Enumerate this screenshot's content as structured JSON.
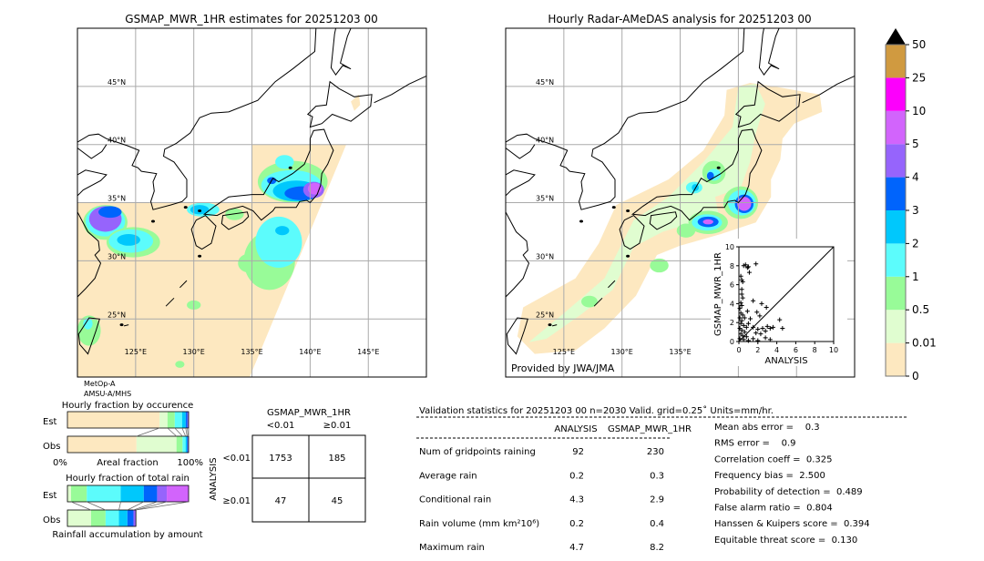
{
  "left_map": {
    "title": "GSMAP_MWR_1HR estimates for 20251203 00",
    "sensor_line1": "MetOp-A",
    "sensor_line2": "AMSU-A/MHS"
  },
  "right_map": {
    "title": "Hourly Radar-AMeDAS analysis for 20251203 00",
    "credit": "Provided by JWA/JMA"
  },
  "lat_labels": [
    "45°N",
    "40°N",
    "35°N",
    "30°N",
    "25°N"
  ],
  "lon_labels": [
    "125°E",
    "130°E",
    "135°E",
    "140°E",
    "145°E"
  ],
  "colorbar": {
    "ticks": [
      "0",
      "0.01",
      "0.5",
      "1",
      "2",
      "3",
      "4",
      "5",
      "10",
      "25",
      "50"
    ],
    "colors": [
      "#fde8c0",
      "#e0fdd0",
      "#98fb98",
      "#5cfcfc",
      "#00c8fc",
      "#0064fc",
      "#9664fc",
      "#d264fc",
      "#fc00fc",
      "#d09a40"
    ],
    "extend_color": "#000000"
  },
  "chart_data": [
    {
      "type": "scatter",
      "xlabel": "ANALYSIS",
      "ylabel": "GSMAP_MWR_1HR",
      "xlim": [
        0,
        10
      ],
      "ylim": [
        0,
        10
      ],
      "xticks": [
        "0",
        "2",
        "4",
        "6",
        "8",
        "10"
      ],
      "yticks": [
        "0",
        "2",
        "4",
        "6",
        "8",
        "10"
      ],
      "marker": "+",
      "reference_line": "y=x",
      "points": [
        [
          0.5,
          8.0
        ],
        [
          0.7,
          8.1
        ],
        [
          0.9,
          7.8
        ],
        [
          1.1,
          7.3
        ],
        [
          1.8,
          8.2
        ],
        [
          1.0,
          7.9
        ],
        [
          0.3,
          6.5
        ],
        [
          0.4,
          6.3
        ],
        [
          0.2,
          6.9
        ],
        [
          0.3,
          5.5
        ],
        [
          0.3,
          5.0
        ],
        [
          0.4,
          4.6
        ],
        [
          0.2,
          4.1
        ],
        [
          0.3,
          3.8
        ],
        [
          0.1,
          3.5
        ],
        [
          0.2,
          3.0
        ],
        [
          0.4,
          2.8
        ],
        [
          0.1,
          2.5
        ],
        [
          0.3,
          2.2
        ],
        [
          0.2,
          1.9
        ],
        [
          0.5,
          1.7
        ],
        [
          0.1,
          1.4
        ],
        [
          0.3,
          1.2
        ],
        [
          0.6,
          1.0
        ],
        [
          0.2,
          0.8
        ],
        [
          0.4,
          0.6
        ],
        [
          0.8,
          0.5
        ],
        [
          0.1,
          0.3
        ],
        [
          0.5,
          0.2
        ],
        [
          1.0,
          0.1
        ],
        [
          1.5,
          0.3
        ],
        [
          2.0,
          0.1
        ],
        [
          2.8,
          0.4
        ],
        [
          3.3,
          0.2
        ],
        [
          1.5,
          4.3
        ],
        [
          2.4,
          4.0
        ],
        [
          2.9,
          3.6
        ],
        [
          1.9,
          3.1
        ],
        [
          2.2,
          2.7
        ],
        [
          1.2,
          2.4
        ],
        [
          1.0,
          1.9
        ],
        [
          1.5,
          1.5
        ],
        [
          2.0,
          1.3
        ],
        [
          2.5,
          1.4
        ],
        [
          3.0,
          1.6
        ],
        [
          3.3,
          1.4
        ],
        [
          4.3,
          2.3
        ],
        [
          4.6,
          1.4
        ],
        [
          3.6,
          1.5
        ],
        [
          2.8,
          1.1
        ],
        [
          2.3,
          0.8
        ],
        [
          1.8,
          0.9
        ],
        [
          0.8,
          1.5
        ],
        [
          0.6,
          2.5
        ],
        [
          0.9,
          3.2
        ]
      ]
    },
    {
      "type": "bar",
      "title": "Hourly fraction by occurence",
      "xlabel": "Areal fraction",
      "x_min_label": "0%",
      "x_max_label": "100%",
      "categories": [
        "Est",
        "Obs"
      ],
      "stacked": true,
      "series_colors": [
        "#fde8c0",
        "#e0fdd0",
        "#98fb98",
        "#5cfcfc",
        "#00c8fc",
        "#0064fc",
        "#9664fc"
      ],
      "values": {
        "Est": [
          0.76,
          0.066,
          0.06,
          0.06,
          0.03,
          0.014,
          0.01
        ],
        "Obs": [
          0.57,
          0.33,
          0.05,
          0.025,
          0.012,
          0.008,
          0.005
        ]
      }
    },
    {
      "type": "bar",
      "title": "Hourly fraction of total rain",
      "xlabel": "Rainfall accumulation by amount",
      "categories": [
        "Est",
        "Obs"
      ],
      "stacked": true,
      "series_colors": [
        "#e0fdd0",
        "#98fb98",
        "#5cfcfc",
        "#00c8fc",
        "#0064fc",
        "#9664fc",
        "#d264fc"
      ],
      "values": {
        "Est": [
          0.03,
          0.13,
          0.28,
          0.19,
          0.11,
          0.08,
          0.18
        ],
        "Obs": [
          0.195,
          0.12,
          0.11,
          0.07,
          0.05,
          0.02,
          0.0
        ]
      }
    },
    {
      "type": "table",
      "title": "GSMAP_MWR_1HR",
      "col_labels": [
        "<0.01",
        "≥0.01"
      ],
      "row_title": "ANALYSIS",
      "row_labels": [
        "<0.01",
        "≥0.01"
      ],
      "cells": [
        [
          "1753",
          "185"
        ],
        [
          "47",
          "45"
        ]
      ]
    }
  ],
  "stats": {
    "header": "Validation statistics for 20251203 00  n=2030 Valid. grid=0.25˚ Units=mm/hr.",
    "col_analysis": "ANALYSIS",
    "col_gsmap": "GSMAP_MWR_1HR",
    "rows": [
      {
        "label": "Num of gridpoints raining",
        "analysis": "92",
        "gsmap": "230"
      },
      {
        "label": "Average rain",
        "analysis": "0.2",
        "gsmap": "0.3"
      },
      {
        "label": "Conditional rain",
        "analysis": "4.3",
        "gsmap": "2.9"
      },
      {
        "label": "Rain volume (mm km²10⁶)",
        "analysis": "0.2",
        "gsmap": "0.4"
      },
      {
        "label": "Maximum rain",
        "analysis": "4.7",
        "gsmap": "8.2"
      }
    ],
    "scores": [
      "Mean abs error =    0.3",
      "RMS error =    0.9",
      "Correlation coeff =  0.325",
      "Frequency bias =  2.500",
      "Probability of detection =  0.489",
      "False alarm ratio =  0.804",
      "Hanssen & Kuipers score =  0.394",
      "Equitable threat score =  0.130"
    ]
  }
}
